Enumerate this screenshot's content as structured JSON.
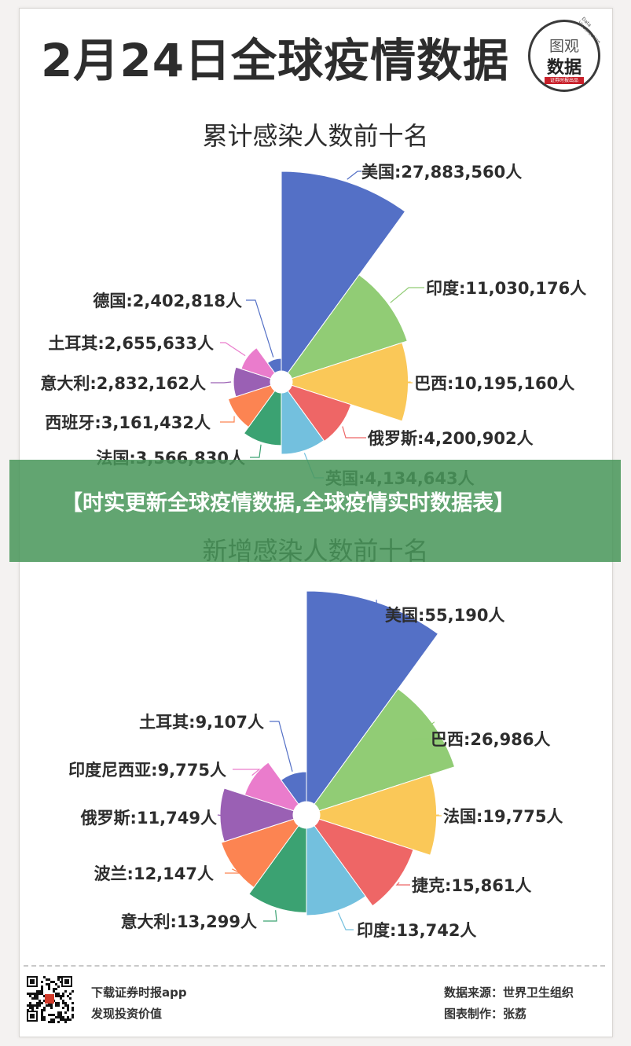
{
  "header": {
    "title": "2月24日全球疫情数据",
    "logo_line1": "图观",
    "logo_line2": "数据",
    "logo_badge": "证券时报出品",
    "logo_arc": "Data Visualization"
  },
  "overlay_text": "【时实更新全球疫情数据,全球疫情实时数据表】",
  "footer": {
    "left_line1": "下载证券时报app",
    "left_line2": "发现投资价值",
    "right_line1": "数据来源：世界卫生组织",
    "right_line2": "图表制作：张荔"
  },
  "colors": [
    "#5470c6",
    "#91cc75",
    "#fac858",
    "#ee6666",
    "#73c0de",
    "#3ba272",
    "#fc8452",
    "#9a60b4",
    "#ea7ccc",
    "#5470c6"
  ],
  "chart_data": [
    {
      "type": "pie",
      "title": "累计感染人数前十名",
      "unit": "人",
      "categories": [
        "美国",
        "印度",
        "巴西",
        "俄罗斯",
        "英国",
        "法国",
        "西班牙",
        "意大利",
        "土耳其",
        "德国"
      ],
      "values": [
        27883560,
        11030176,
        10195160,
        4200902,
        4134643,
        3566830,
        3161432,
        2832162,
        2655633,
        2402818
      ],
      "labels": [
        "美国:27,883,560人",
        "印度:11,030,176人",
        "巴西:10,195,160人",
        "俄罗斯:4,200,902人",
        "英国:4,134,643人",
        "法国:3,566,830人",
        "西班牙:3,161,432人",
        "意大利:2,832,162人",
        "土耳其:2,655,633人",
        "德国:2,402,818人"
      ]
    },
    {
      "type": "pie",
      "title": "新增感染人数前十名",
      "unit": "人",
      "categories": [
        "美国",
        "巴西",
        "法国",
        "捷克",
        "印度",
        "意大利",
        "波兰",
        "俄罗斯",
        "印度尼西亚",
        "土耳其"
      ],
      "values": [
        55190,
        26986,
        19775,
        15861,
        13742,
        13299,
        12147,
        11749,
        9775,
        9107
      ],
      "labels": [
        "美国:55,190人",
        "巴西:26,986人",
        "法国:19,775人",
        "捷克:15,861人",
        "印度:13,742人",
        "意大利:13,299人",
        "波兰:12,147人",
        "俄罗斯:11,749人",
        "印度尼西亚:9,775人",
        "土耳其:9,107人"
      ]
    }
  ]
}
